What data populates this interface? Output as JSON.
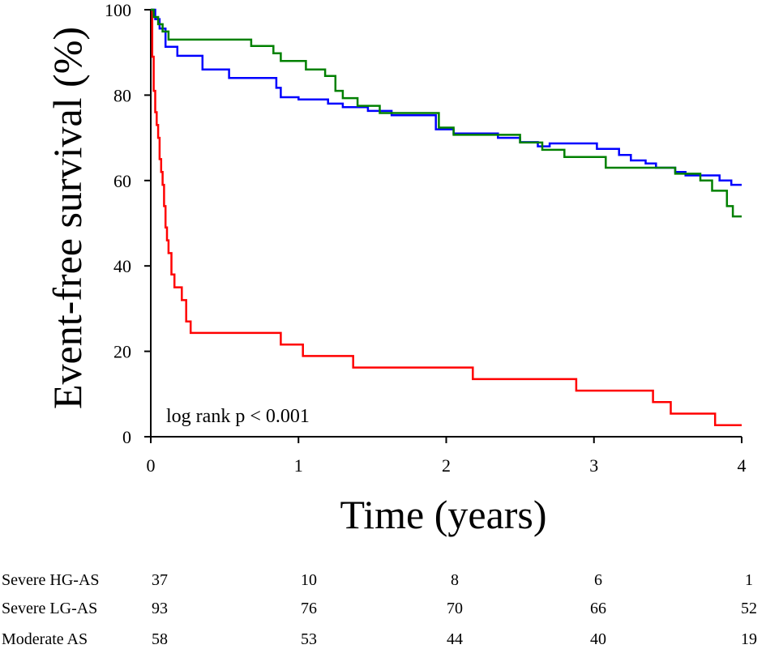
{
  "chart_data": {
    "type": "line",
    "subtype": "kaplan-meier-step",
    "title": "",
    "xlabel": "Time (years)",
    "ylabel": "Event-free survival (%)",
    "xlim": [
      0,
      4
    ],
    "ylim": [
      0,
      100
    ],
    "x_ticks": [
      0,
      1,
      2,
      3,
      4
    ],
    "y_ticks": [
      0,
      20,
      40,
      60,
      80,
      100
    ],
    "grid": false,
    "annotation": "log rank p < 0.001",
    "series": [
      {
        "name": "Severe HG-AS",
        "color": "#ff0000",
        "x": [
          0,
          0.01,
          0.01,
          0.02,
          0.02,
          0.03,
          0.03,
          0.04,
          0.04,
          0.05,
          0.05,
          0.06,
          0.06,
          0.07,
          0.07,
          0.08,
          0.08,
          0.09,
          0.09,
          0.1,
          0.1,
          0.11,
          0.11,
          0.12,
          0.12,
          0.14,
          0.14,
          0.16,
          0.16,
          0.21,
          0.21,
          0.24,
          0.24,
          0.27,
          0.27,
          0.88,
          0.88,
          1.03,
          1.03,
          1.37,
          1.37,
          2.18,
          2.18,
          2.88,
          2.88,
          3.4,
          3.4,
          3.52,
          3.52,
          3.82,
          3.82,
          4.0
        ],
        "y": [
          100,
          100,
          89,
          89,
          81,
          81,
          76,
          76,
          73,
          73,
          70,
          70,
          65,
          65,
          62,
          62,
          59,
          59,
          54,
          54,
          49,
          49,
          46,
          46,
          43,
          43,
          38,
          38,
          35,
          35,
          32,
          32,
          27,
          27,
          24.3,
          24.3,
          21.6,
          21.6,
          18.9,
          18.9,
          16.2,
          16.2,
          13.5,
          13.5,
          10.8,
          10.8,
          8.1,
          8.1,
          5.4,
          5.4,
          2.7,
          2.7
        ]
      },
      {
        "name": "Severe LG-AS",
        "color": "#0000ff",
        "x": [
          0,
          0.03,
          0.03,
          0.06,
          0.06,
          0.1,
          0.1,
          0.18,
          0.18,
          0.35,
          0.35,
          0.53,
          0.53,
          0.85,
          0.85,
          0.88,
          0.88,
          1.0,
          1.0,
          1.2,
          1.2,
          1.3,
          1.3,
          1.47,
          1.47,
          1.63,
          1.63,
          1.93,
          1.93,
          2.05,
          2.05,
          2.35,
          2.35,
          2.5,
          2.5,
          2.62,
          2.62,
          2.7,
          2.7,
          3.02,
          3.02,
          3.17,
          3.17,
          3.25,
          3.25,
          3.35,
          3.35,
          3.42,
          3.42,
          3.55,
          3.55,
          3.62,
          3.62,
          3.85,
          3.85,
          3.93,
          3.93,
          4.0
        ],
        "y": [
          100,
          100,
          97.8,
          97.8,
          95.6,
          95.6,
          91.3,
          91.3,
          89.2,
          89.2,
          86.0,
          86.0,
          84.0,
          84.0,
          81.7,
          81.7,
          79.5,
          79.5,
          79.0,
          79.0,
          78.0,
          78.0,
          77.2,
          77.2,
          76.3,
          76.3,
          75.3,
          75.3,
          72.0,
          72.0,
          71.0,
          71.0,
          70.0,
          70.0,
          69.0,
          69.0,
          68.0,
          68.0,
          68.7,
          68.7,
          67.4,
          67.4,
          66.0,
          66.0,
          64.7,
          64.7,
          64.0,
          64.0,
          63.0,
          63.0,
          62.0,
          62.0,
          61.2,
          61.2,
          60.0,
          60.0,
          59.0,
          59.0
        ]
      },
      {
        "name": "Moderate AS",
        "color": "#008000",
        "x": [
          0,
          0.02,
          0.02,
          0.05,
          0.05,
          0.08,
          0.08,
          0.12,
          0.12,
          0.68,
          0.68,
          0.83,
          0.83,
          0.88,
          0.88,
          1.05,
          1.05,
          1.18,
          1.18,
          1.25,
          1.25,
          1.3,
          1.3,
          1.4,
          1.4,
          1.55,
          1.55,
          1.95,
          1.95,
          2.05,
          2.05,
          2.5,
          2.5,
          2.65,
          2.65,
          2.8,
          2.8,
          3.08,
          3.08,
          3.55,
          3.55,
          3.72,
          3.72,
          3.8,
          3.8,
          3.9,
          3.9,
          3.94,
          3.94,
          4.0
        ],
        "y": [
          100,
          100,
          98.3,
          98.3,
          96.6,
          96.6,
          94.9,
          94.9,
          93.0,
          93.0,
          91.5,
          91.5,
          89.8,
          89.8,
          88.0,
          88.0,
          86.0,
          86.0,
          84.5,
          84.5,
          81.0,
          81.0,
          79.3,
          79.3,
          77.5,
          77.5,
          75.8,
          75.8,
          72.4,
          72.4,
          70.7,
          70.7,
          68.9,
          68.9,
          67.2,
          67.2,
          65.5,
          65.5,
          63.0,
          63.0,
          61.6,
          61.6,
          60.0,
          60.0,
          57.6,
          57.6,
          54.0,
          54.0,
          51.6,
          51.6
        ]
      }
    ],
    "risk_table": {
      "times": [
        0,
        1,
        2,
        3,
        4
      ],
      "rows": [
        {
          "label": "Severe HG-AS",
          "counts": [
            "37",
            "10",
            "8",
            "6",
            "1"
          ]
        },
        {
          "label": "Severe LG-AS",
          "counts": [
            "93",
            "76",
            "70",
            "66",
            "52"
          ]
        },
        {
          "label": "Moderate AS",
          "counts": [
            "58",
            "53",
            "44",
            "40",
            "19"
          ]
        }
      ]
    }
  }
}
